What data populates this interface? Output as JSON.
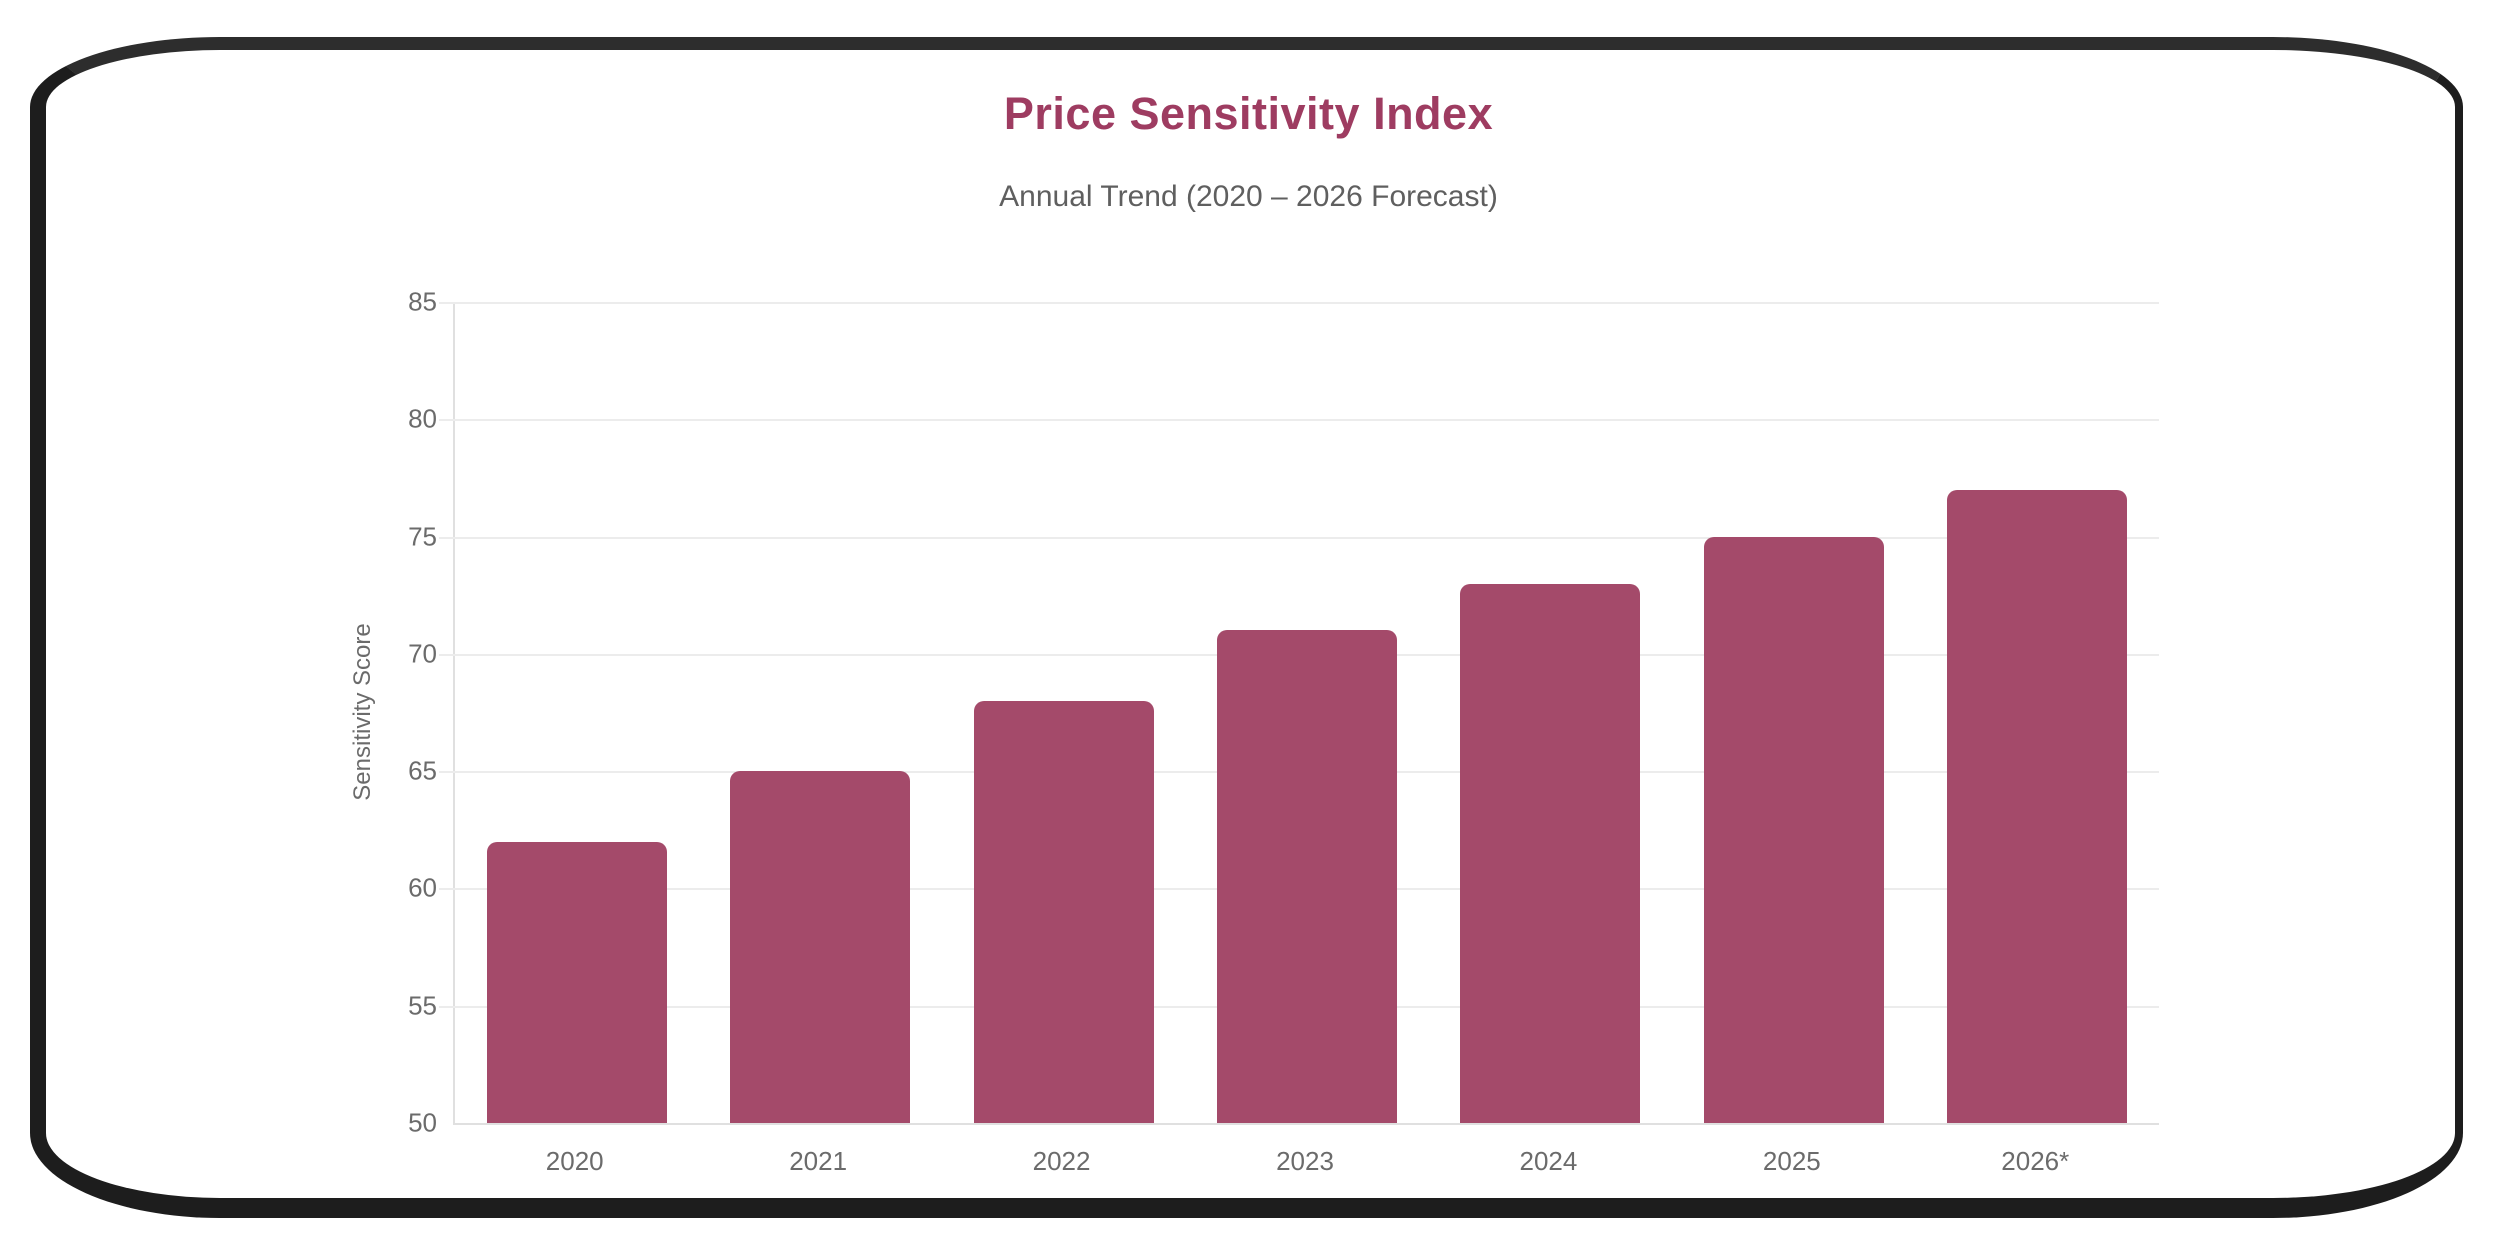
{
  "frame": {
    "border_color": "#1d1d1d"
  },
  "chart_data": {
    "type": "bar",
    "title": "Price Sensitivity Index",
    "subtitle": "Annual Trend (2020 – 2026 Forecast)",
    "categories": [
      "2020",
      "2021",
      "2022",
      "2023",
      "2024",
      "2025",
      "2026*"
    ],
    "values": [
      62,
      65,
      68,
      71,
      73,
      75,
      77
    ],
    "xlabel": "",
    "ylabel": "Sensitivity Score",
    "ylim": [
      50,
      85
    ],
    "yticks": [
      50,
      55,
      60,
      65,
      70,
      75,
      80,
      85
    ],
    "grid": true,
    "legend": "none",
    "colors": {
      "bar": "#a44a6a",
      "title": "#9e3c61",
      "subtitle": "#5f5f5f",
      "tick_text": "#6b6b6b",
      "gridline": "#ececec",
      "axis_line": "#e0e0e0"
    }
  }
}
